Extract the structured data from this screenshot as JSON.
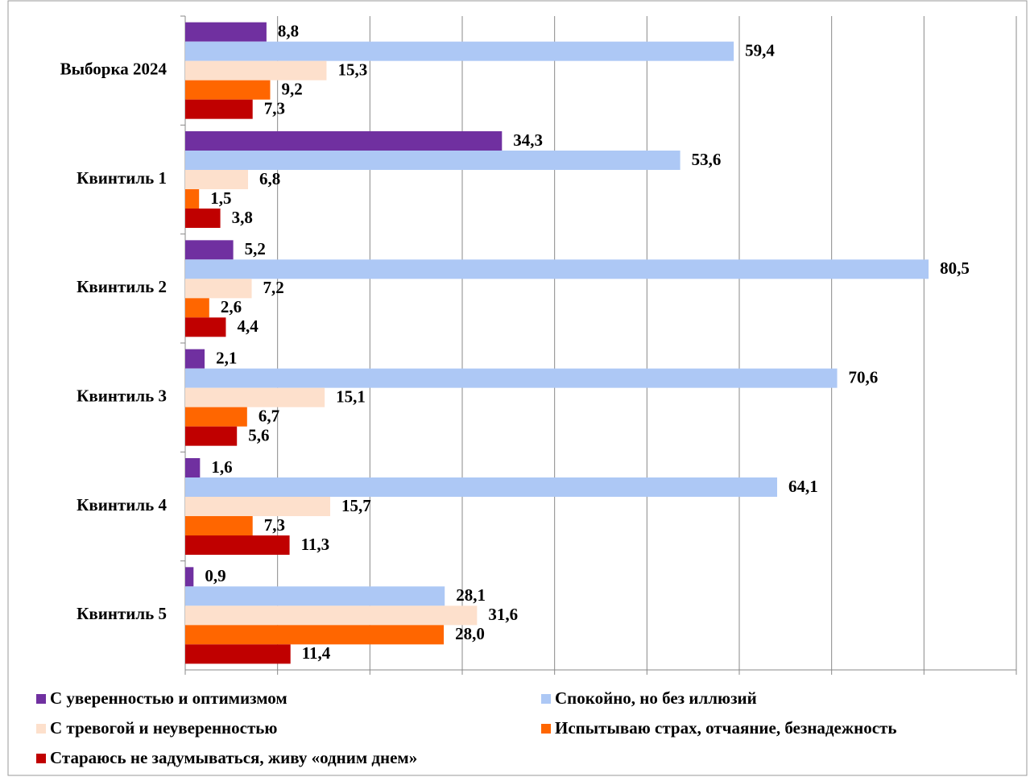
{
  "chart_data": {
    "type": "hbar",
    "categories": [
      "Выборка 2024",
      "Квинтиль 1",
      "Квинтиль 2",
      "Квинтиль 3",
      "Квинтиль 4",
      "Квинтиль 5"
    ],
    "series": [
      {
        "name": "С уверенностью и оптимизмом",
        "color": "#7030a0",
        "values": [
          8.8,
          34.3,
          5.2,
          2.1,
          1.6,
          0.9
        ],
        "value_labels": [
          "8,8",
          "34,3",
          "5,2",
          "2,1",
          "1,6",
          "0,9"
        ]
      },
      {
        "name": "Спокойно, но без иллюзий",
        "color": "#adc8f5",
        "values": [
          59.4,
          53.6,
          80.5,
          70.6,
          64.1,
          28.1
        ],
        "value_labels": [
          "59,4",
          "53,6",
          "80,5",
          "70,6",
          "64,1",
          "28,1"
        ]
      },
      {
        "name": "С тревогой и неуверенностью",
        "color": "#fde0cc",
        "values": [
          15.3,
          6.8,
          7.2,
          15.1,
          15.7,
          31.6
        ],
        "value_labels": [
          "15,3",
          "6,8",
          "7,2",
          "15,1",
          "15,7",
          "31,6"
        ]
      },
      {
        "name": "Испытываю страх, отчаяние, безнадежность",
        "color": "#ff6600",
        "values": [
          9.2,
          1.5,
          2.6,
          6.7,
          7.3,
          28.0
        ],
        "value_labels": [
          "9,2",
          "1,5",
          "2,6",
          "6,7",
          "7,3",
          "28,0"
        ]
      },
      {
        "name": "Стараюсь не задумываться, живу «одним днем»",
        "color": "#c00000",
        "values": [
          7.3,
          3.8,
          4.4,
          5.6,
          11.3,
          11.4
        ],
        "value_labels": [
          "7,3",
          "3,8",
          "4,4",
          "5,6",
          "11,3",
          "11,4"
        ]
      }
    ],
    "xlim": [
      0,
      90
    ],
    "xticks": [
      0,
      10,
      20,
      30,
      40,
      50,
      60,
      70,
      80,
      90
    ],
    "grid": true
  }
}
